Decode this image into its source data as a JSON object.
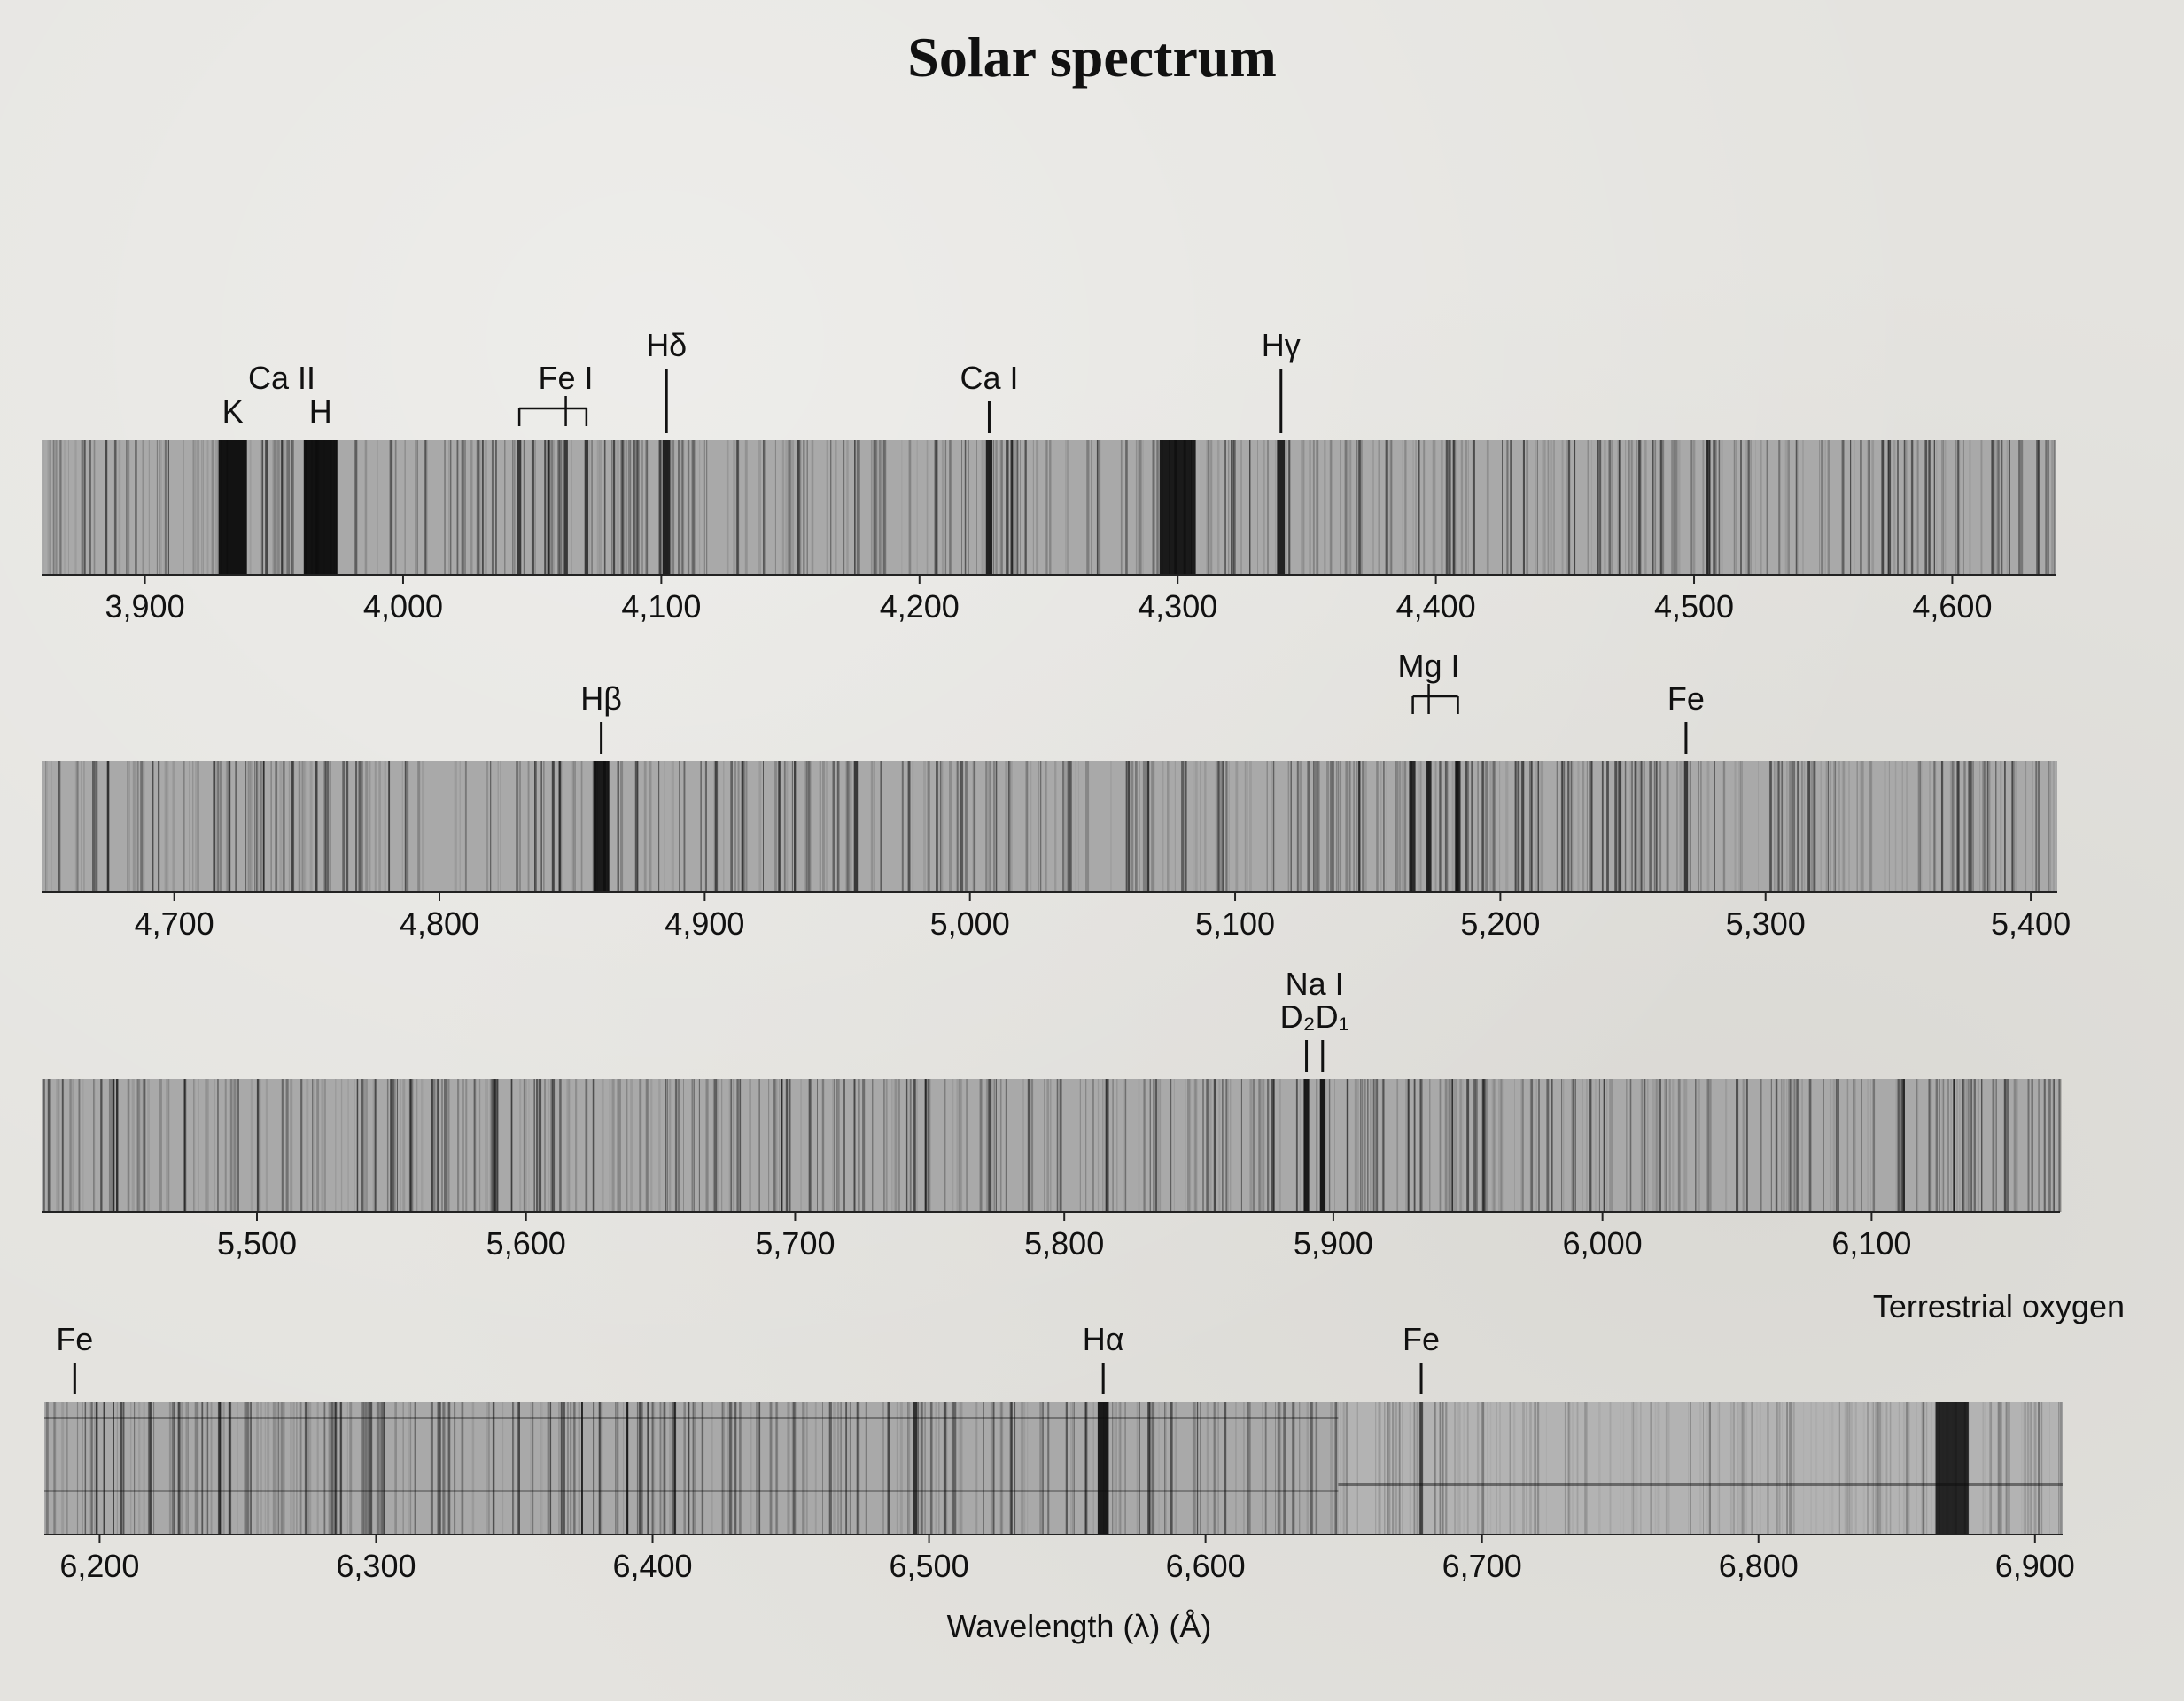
{
  "title": "Solar spectrum",
  "chart_data": {
    "type": "spectrum",
    "title": "Solar spectrum",
    "xlabel": "Wavelength (λ) (Å)",
    "units": "Å",
    "colors": {
      "paper": "#e4e3df",
      "continuum": "#a9a9a9",
      "line": "#0a0a0a",
      "text": "#111111"
    },
    "panels": [
      {
        "range": [
          3860,
          4640
        ],
        "ticks": [
          3900,
          4000,
          4100,
          4200,
          4300,
          4400,
          4500,
          4600
        ],
        "tick_labels": [
          "3,900",
          "4,000",
          "4,100",
          "4,200",
          "4,300",
          "4,400",
          "4,500",
          "4,600"
        ],
        "labels": [
          {
            "text": "Ca II",
            "at": 3953,
            "row": 0,
            "marker": false
          },
          {
            "text": "K",
            "at": 3934,
            "row": 1,
            "marker": false
          },
          {
            "text": "H",
            "at": 3968,
            "row": 1,
            "marker": false
          },
          {
            "text": "Fe I",
            "at": 4063,
            "row": 0,
            "bracket": [
              4045,
              4063,
              4071
            ]
          },
          {
            "text": "Hδ",
            "at": 4102,
            "row": -1,
            "marker": true
          },
          {
            "text": "Ca I",
            "at": 4227,
            "row": 0,
            "marker": true
          },
          {
            "text": "Hγ",
            "at": 4340,
            "row": -1,
            "marker": true
          }
        ],
        "strong_lines": [
          {
            "at": 3934,
            "width": 11,
            "depth": 0.95
          },
          {
            "at": 3968,
            "width": 13,
            "depth": 0.95
          },
          {
            "at": 4102,
            "width": 3,
            "depth": 0.85
          },
          {
            "at": 4227,
            "width": 2.5,
            "depth": 0.85
          },
          {
            "at": 4300,
            "width": 14,
            "depth": 0.9
          },
          {
            "at": 4340,
            "width": 3,
            "depth": 0.85
          },
          {
            "at": 4045,
            "width": 1.5,
            "depth": 0.7
          },
          {
            "at": 4063,
            "width": 1.5,
            "depth": 0.7
          },
          {
            "at": 4071,
            "width": 1.5,
            "depth": 0.7
          }
        ]
      },
      {
        "range": [
          4650,
          5410
        ],
        "ticks": [
          4700,
          4800,
          4900,
          5000,
          5100,
          5200,
          5300,
          5400
        ],
        "tick_labels": [
          "4,700",
          "4,800",
          "4,900",
          "5,000",
          "5,100",
          "5,200",
          "5,300",
          "5,400"
        ],
        "labels": [
          {
            "text": "Hβ",
            "at": 4861,
            "row": 0,
            "marker": true
          },
          {
            "text": "Mg I",
            "at": 5173,
            "row": -1,
            "bracket": [
              5167,
              5173,
              5184
            ]
          },
          {
            "text": "Fe",
            "at": 5270,
            "row": 0,
            "marker": true
          }
        ],
        "strong_lines": [
          {
            "at": 4861,
            "width": 6,
            "depth": 0.9
          },
          {
            "at": 4957,
            "width": 1.5,
            "depth": 0.7
          },
          {
            "at": 5167,
            "width": 2,
            "depth": 0.8
          },
          {
            "at": 5173,
            "width": 2,
            "depth": 0.8
          },
          {
            "at": 5184,
            "width": 2,
            "depth": 0.8
          },
          {
            "at": 5270,
            "width": 1.5,
            "depth": 0.7
          }
        ]
      },
      {
        "range": [
          5420,
          6170
        ],
        "ticks": [
          5500,
          5600,
          5700,
          5800,
          5900,
          6000,
          6100
        ],
        "tick_labels": [
          "5,500",
          "5,600",
          "5,700",
          "5,800",
          "5,900",
          "6,000",
          "6,100"
        ],
        "labels": [
          {
            "text": "Na I",
            "at": 5893,
            "row": -1,
            "marker": false
          },
          {
            "text": "D₂D₁",
            "at": 5893,
            "row": 0,
            "ticks_at": [
              5890,
              5896
            ]
          }
        ],
        "strong_lines": [
          {
            "at": 5890,
            "width": 2,
            "depth": 0.9
          },
          {
            "at": 5896,
            "width": 2,
            "depth": 0.9
          }
        ]
      },
      {
        "range": [
          6180,
          6910
        ],
        "ticks": [
          6200,
          6300,
          6400,
          6500,
          6600,
          6700,
          6800,
          6900
        ],
        "tick_labels": [
          "6,200",
          "6,300",
          "6,400",
          "6,500",
          "6,600",
          "6,700",
          "6,800",
          "6,900"
        ],
        "labels": [
          {
            "text": "Fe",
            "at": 6191,
            "row": 0,
            "marker": true
          },
          {
            "text": "Hα",
            "at": 6563,
            "row": 0,
            "marker": true
          },
          {
            "text": "Fe",
            "at": 6678,
            "row": 0,
            "marker": true
          },
          {
            "text": "Terrestrial oxygen",
            "at": 6870,
            "row": -1,
            "marker": false
          }
        ],
        "strong_lines": [
          {
            "at": 6563,
            "width": 4,
            "depth": 0.9
          },
          {
            "at": 6495,
            "width": 1.5,
            "depth": 0.75
          },
          {
            "at": 6678,
            "width": 1.2,
            "depth": 0.6
          },
          {
            "at": 6870,
            "width": 12,
            "depth": 0.85
          }
        ]
      }
    ]
  }
}
